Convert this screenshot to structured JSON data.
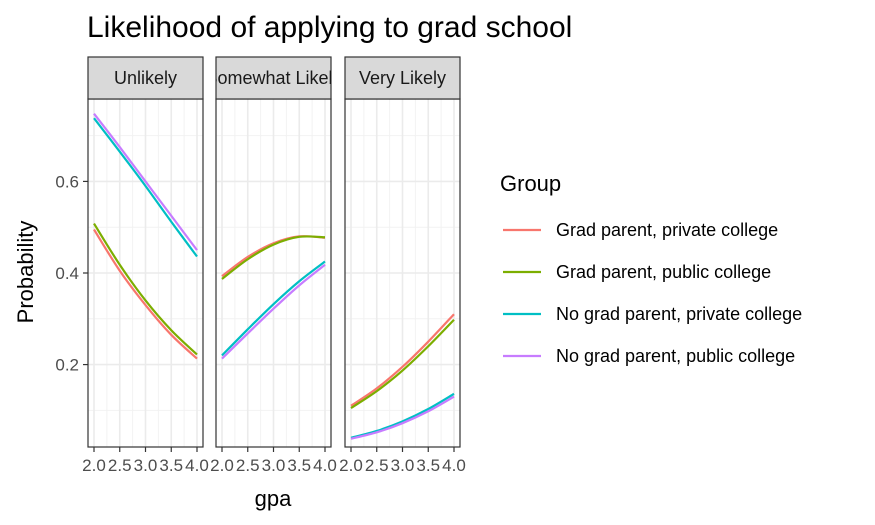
{
  "chart_data": {
    "type": "line",
    "title": "Likelihood of applying to grad school",
    "xlabel": "gpa",
    "ylabel": "Probability",
    "xlim": [
      2.0,
      4.0
    ],
    "ylim": [
      0.02,
      0.78
    ],
    "x_ticks": [
      2.0,
      2.5,
      3.0,
      3.5,
      4.0
    ],
    "x_tick_labels": [
      "2.0",
      "2.5",
      "3.0",
      "3.5",
      "4.0"
    ],
    "y_ticks": [
      0.2,
      0.4,
      0.6
    ],
    "y_tick_labels": [
      "0.2",
      "0.4",
      "0.6"
    ],
    "grid": true,
    "legend": {
      "title": "Group",
      "position": "right"
    },
    "series_styles": [
      {
        "name": "Grad parent, private college",
        "color": "#F8766D"
      },
      {
        "name": "Grad parent, public college",
        "color": "#7CAE00"
      },
      {
        "name": "No grad parent, private college",
        "color": "#00BFC4"
      },
      {
        "name": "No grad parent, public college",
        "color": "#C77CFF"
      }
    ],
    "x": [
      2.0,
      2.5,
      3.0,
      3.5,
      4.0
    ],
    "facets": [
      {
        "label": "Unlikely",
        "series": [
          {
            "name": "Grad parent, private college",
            "values": [
              0.495,
              0.405,
              0.33,
              0.265,
              0.213
            ]
          },
          {
            "name": "Grad parent, public college",
            "values": [
              0.508,
              0.418,
              0.34,
              0.275,
              0.222
            ]
          },
          {
            "name": "No grad parent, private college",
            "values": [
              0.738,
              0.665,
              0.59,
              0.512,
              0.436
            ]
          },
          {
            "name": "No grad parent, public college",
            "values": [
              0.748,
              0.675,
              0.6,
              0.525,
              0.45
            ]
          }
        ]
      },
      {
        "label": "Somewhat Likely",
        "series": [
          {
            "name": "Grad parent, private college",
            "values": [
              0.393,
              0.435,
              0.465,
              0.48,
              0.477
            ]
          },
          {
            "name": "Grad parent, public college",
            "values": [
              0.387,
              0.43,
              0.462,
              0.479,
              0.478
            ]
          },
          {
            "name": "No grad parent, private college",
            "values": [
              0.22,
              0.277,
              0.332,
              0.382,
              0.425
            ]
          },
          {
            "name": "No grad parent, public college",
            "values": [
              0.213,
              0.268,
              0.322,
              0.373,
              0.418
            ]
          }
        ]
      },
      {
        "label": "Very Likely",
        "series": [
          {
            "name": "Grad parent, private college",
            "values": [
              0.11,
              0.148,
              0.195,
              0.25,
              0.31
            ]
          },
          {
            "name": "Grad parent, public college",
            "values": [
              0.105,
              0.142,
              0.187,
              0.24,
              0.298
            ]
          },
          {
            "name": "No grad parent, private college",
            "values": [
              0.04,
              0.055,
              0.076,
              0.103,
              0.136
            ]
          },
          {
            "name": "No grad parent, public college",
            "values": [
              0.038,
              0.052,
              0.072,
              0.098,
              0.13
            ]
          }
        ]
      }
    ]
  }
}
